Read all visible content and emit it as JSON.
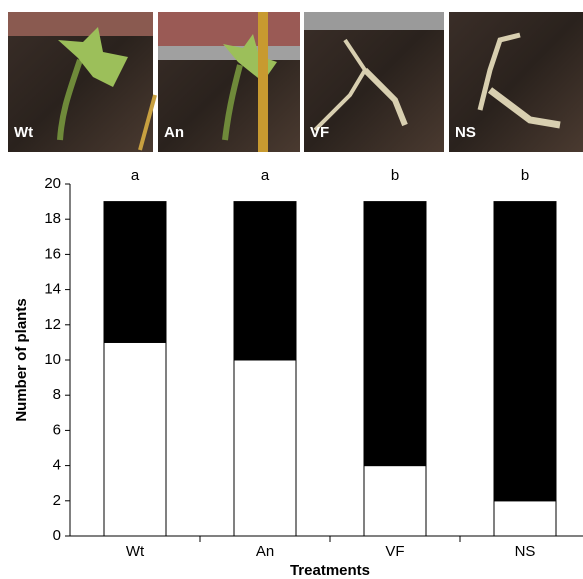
{
  "chart_data": {
    "type": "stacked-bar",
    "categories": [
      "Wt",
      "An",
      "VF",
      "NS"
    ],
    "series": [
      {
        "color": "#ffffff",
        "values": [
          11,
          10,
          4,
          2
        ]
      },
      {
        "color": "#000000",
        "values": [
          8,
          9,
          15,
          17
        ]
      }
    ],
    "annotations": [
      "a",
      "a",
      "b",
      "b"
    ],
    "y_label": "Number of plants",
    "x_label": "Treatments",
    "ylim": [
      0,
      20
    ],
    "yticks": [
      0,
      2,
      4,
      6,
      8,
      10,
      12,
      14,
      16,
      18,
      20
    ]
  }
}
